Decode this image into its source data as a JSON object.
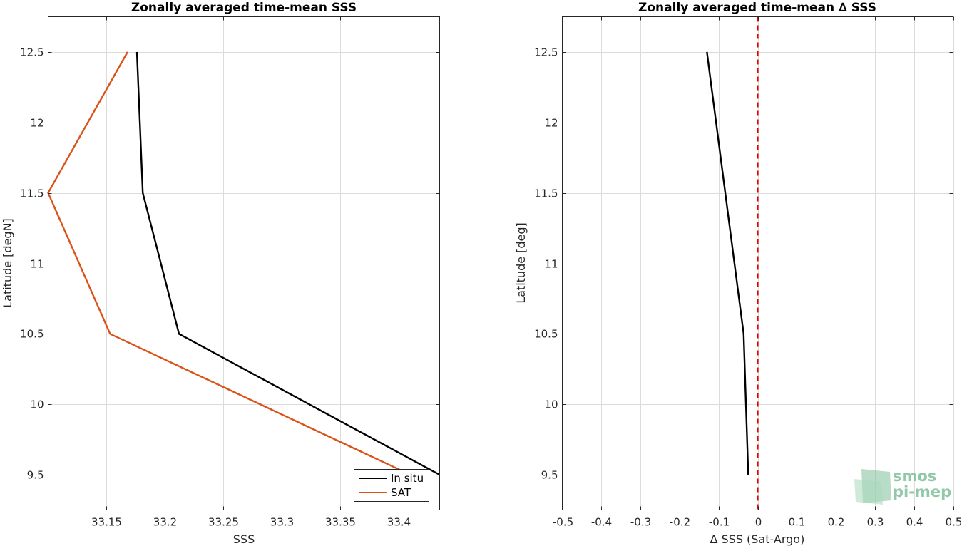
{
  "chart_data": [
    {
      "type": "line",
      "title": "Zonally averaged time-mean SSS",
      "xlabel": "SSS",
      "ylabel": "Latitude [degN]",
      "xlim": [
        33.1,
        33.435
      ],
      "ylim": [
        9.25,
        12.75
      ],
      "xticks": [
        33.15,
        33.2,
        33.25,
        33.3,
        33.35,
        33.4
      ],
      "xtick_labels": [
        "33.15",
        "33.2",
        "33.25",
        "33.3",
        "33.35",
        "33.4"
      ],
      "yticks": [
        9.5,
        10,
        10.5,
        11,
        11.5,
        12,
        12.5
      ],
      "ytick_labels": [
        "9.5",
        "10",
        "10.5",
        "11",
        "11.5",
        "12",
        "12.5"
      ],
      "grid": true,
      "legend": "bottom-right",
      "series": [
        {
          "name": "In situ",
          "color": "#000000",
          "x": [
            33.435,
            33.212,
            33.181,
            33.176
          ],
          "y": [
            9.5,
            10.5,
            11.5,
            12.5
          ]
        },
        {
          "name": "SAT",
          "color": "#d95319",
          "x": [
            33.41,
            33.153,
            33.1,
            33.168
          ],
          "y": [
            9.5,
            10.5,
            11.5,
            12.5
          ]
        }
      ]
    },
    {
      "type": "line",
      "title": "Zonally averaged time-mean ∆ SSS",
      "xlabel": "∆ SSS (Sat-Argo)",
      "ylabel": "Latitude [deg]",
      "xlim": [
        -0.5,
        0.5
      ],
      "ylim": [
        9.25,
        12.75
      ],
      "xticks": [
        -0.5,
        -0.4,
        -0.3,
        -0.2,
        -0.1,
        0,
        0.1,
        0.2,
        0.3,
        0.4,
        0.5
      ],
      "xtick_labels": [
        "-0.5",
        "-0.4",
        "-0.3",
        "-0.2",
        "-0.1",
        "0",
        "0.1",
        "0.2",
        "0.3",
        "0.4",
        "0.5"
      ],
      "yticks": [
        9.5,
        10,
        10.5,
        11,
        11.5,
        12,
        12.5
      ],
      "ytick_labels": [
        "9.5",
        "10",
        "10.5",
        "11",
        "11.5",
        "12",
        "12.5"
      ],
      "grid": true,
      "reference_line": {
        "x": 0,
        "color": "#e60000",
        "style": "dashed"
      },
      "series": [
        {
          "color": "#000000",
          "x": [
            -0.024,
            -0.036,
            -0.13
          ],
          "y": [
            9.5,
            10.5,
            12.5
          ]
        }
      ]
    }
  ],
  "logo": {
    "line1": "smos",
    "line2": "pi-mep"
  }
}
